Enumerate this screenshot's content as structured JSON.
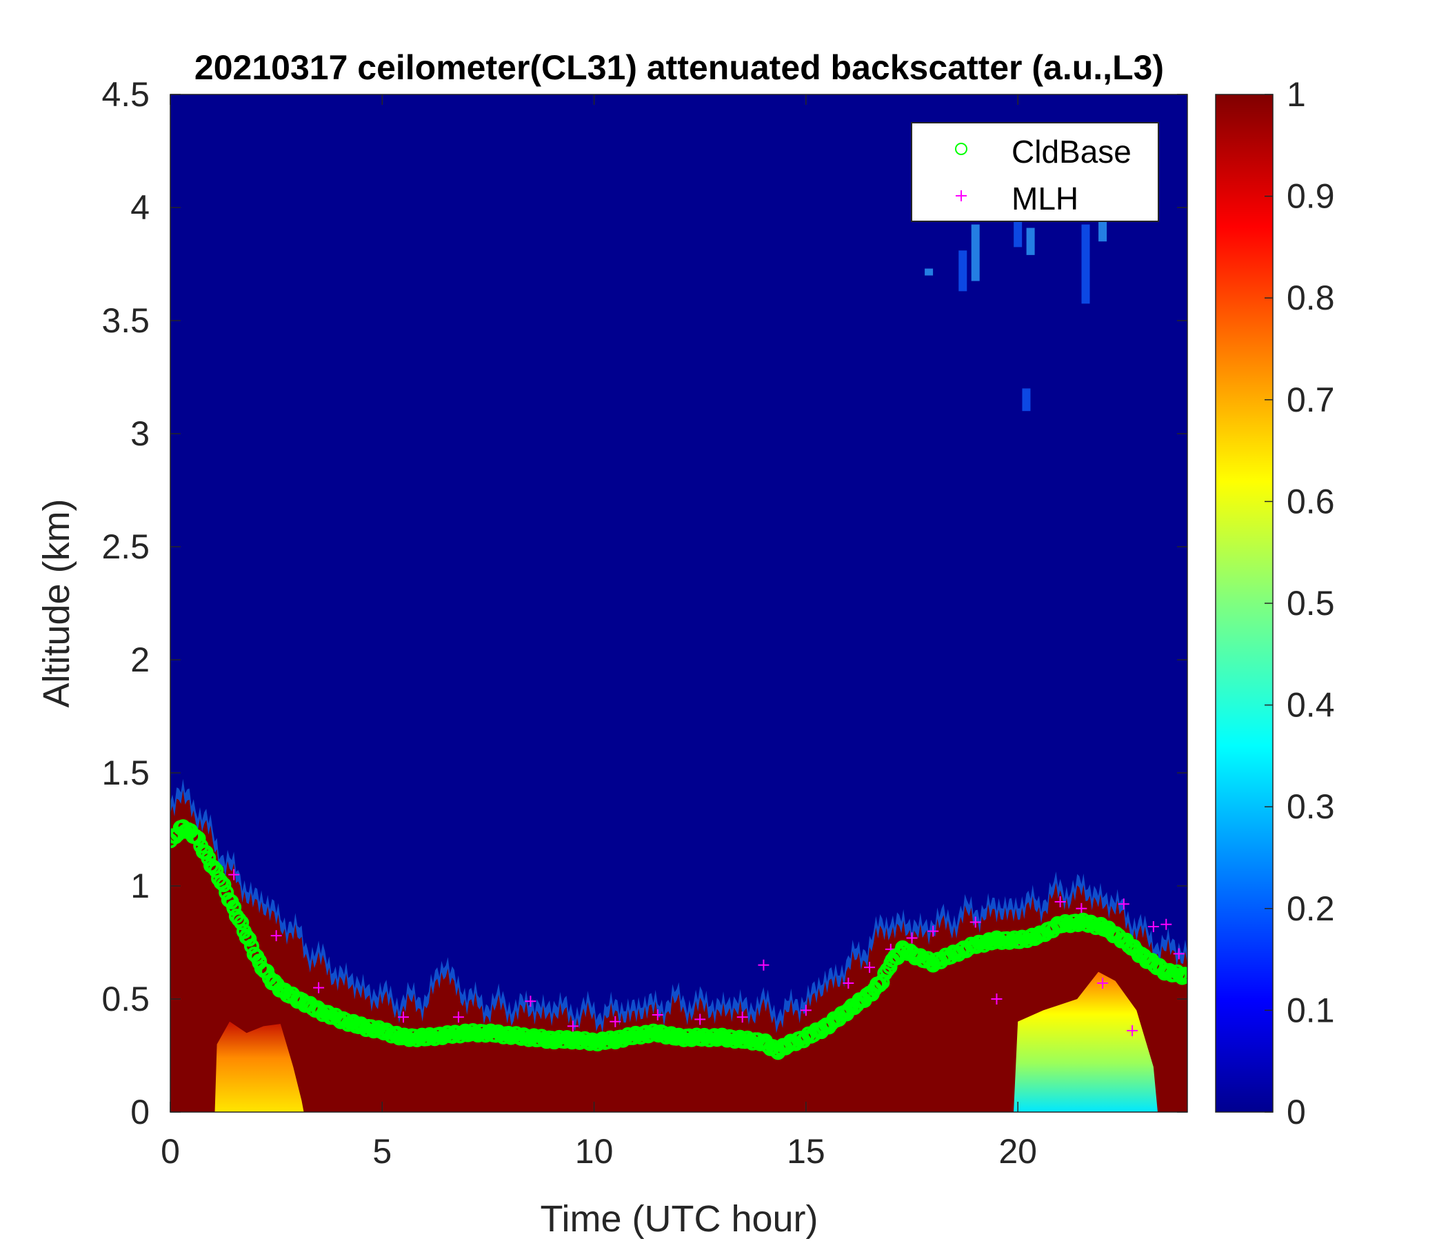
{
  "chart_data": {
    "type": "heatmap",
    "title": "20210317 ceilometer(CL31) attenuated backscatter (a.u.,L3)",
    "xlabel": "Time (UTC hour)",
    "ylabel": "Altitude (km)",
    "xlim": [
      0,
      24
    ],
    "ylim": [
      0,
      4.5
    ],
    "xticks": [
      "0",
      "5",
      "10",
      "15",
      "20"
    ],
    "xtick_values": [
      0,
      5,
      10,
      15,
      20
    ],
    "yticks": [
      "0",
      "0.5",
      "1",
      "1.5",
      "2",
      "2.5",
      "3",
      "3.5",
      "4",
      "4.5"
    ],
    "ytick_values": [
      0,
      0.5,
      1,
      1.5,
      2,
      2.5,
      3,
      3.5,
      4,
      4.5
    ],
    "colorbar": {
      "range": [
        0,
        1
      ],
      "colormap": "jet",
      "ticks": [
        "0",
        "0.1",
        "0.2",
        "0.3",
        "0.4",
        "0.5",
        "0.6",
        "0.7",
        "0.8",
        "0.9",
        "1"
      ],
      "tick_values": [
        0,
        0.1,
        0.2,
        0.3,
        0.4,
        0.5,
        0.6,
        0.7,
        0.8,
        0.9,
        1
      ]
    },
    "background_color": "#00008f",
    "saturated_color": "#800000",
    "grid": false,
    "legend": {
      "placement": "top-right",
      "entries": [
        {
          "label": "CldBase",
          "marker": "circle",
          "color": "#00ff00"
        },
        {
          "label": "MLH",
          "marker": "plus",
          "color": "#ff00ff"
        }
      ]
    },
    "aerosol_layer_top_km": {
      "x": [
        0,
        0.2,
        0.5,
        0.8,
        1.2,
        1.6,
        2.0,
        2.5,
        3.0,
        3.5,
        4.0,
        4.5,
        5.0,
        5.5,
        6.0,
        6.5,
        7.0,
        7.5,
        8.0,
        9.0,
        10.0,
        11.0,
        12.0,
        13.0,
        14.0,
        14.5,
        15.0,
        15.5,
        16.0,
        16.5,
        17.0,
        17.5,
        18.0,
        18.5,
        19.0,
        19.5,
        20.0,
        20.5,
        21.0,
        21.5,
        22.0,
        22.5,
        23.0,
        23.5,
        24.0
      ],
      "y": [
        1.32,
        1.38,
        1.35,
        1.25,
        1.12,
        1.0,
        0.92,
        0.85,
        0.75,
        0.65,
        0.58,
        0.52,
        0.48,
        0.46,
        0.47,
        0.62,
        0.47,
        0.45,
        0.44,
        0.43,
        0.41,
        0.43,
        0.46,
        0.44,
        0.44,
        0.41,
        0.47,
        0.55,
        0.62,
        0.72,
        0.82,
        0.78,
        0.8,
        0.83,
        0.86,
        0.87,
        0.88,
        0.9,
        0.95,
        0.96,
        0.92,
        0.86,
        0.75,
        0.7,
        0.68
      ]
    },
    "cldbase_km": {
      "x": [
        0,
        0.3,
        0.6,
        0.9,
        1.2,
        1.5,
        1.8,
        2.1,
        2.4,
        2.7,
        3.0,
        3.5,
        4.0,
        4.5,
        5.0,
        5.5,
        6.0,
        6.5,
        7.0,
        7.5,
        8.0,
        8.5,
        9.0,
        9.5,
        10.0,
        10.5,
        11.0,
        11.5,
        12.0,
        12.5,
        13.0,
        13.5,
        14.0,
        14.3,
        14.6,
        15.0,
        15.5,
        16.0,
        16.5,
        16.8,
        17.0,
        17.3,
        17.6,
        18.0,
        18.5,
        19.0,
        19.5,
        20.0,
        20.5,
        21.0,
        21.5,
        22.0,
        22.5,
        23.0,
        23.5,
        24.0
      ],
      "y": [
        1.2,
        1.26,
        1.22,
        1.12,
        1.02,
        0.9,
        0.78,
        0.66,
        0.58,
        0.53,
        0.5,
        0.45,
        0.41,
        0.38,
        0.36,
        0.33,
        0.33,
        0.34,
        0.35,
        0.35,
        0.34,
        0.33,
        0.32,
        0.32,
        0.31,
        0.32,
        0.34,
        0.35,
        0.33,
        0.33,
        0.33,
        0.32,
        0.31,
        0.27,
        0.3,
        0.33,
        0.38,
        0.45,
        0.52,
        0.58,
        0.66,
        0.72,
        0.69,
        0.66,
        0.7,
        0.74,
        0.76,
        0.76,
        0.78,
        0.83,
        0.84,
        0.82,
        0.76,
        0.68,
        0.62,
        0.6
      ]
    },
    "mlh_km": {
      "x": [
        1.5,
        2.5,
        3.5,
        5.5,
        6.8,
        8.5,
        9.5,
        10.5,
        11.5,
        12.5,
        13.5,
        14.0,
        15.0,
        16.0,
        16.5,
        17.0,
        17.5,
        18.0,
        19.0,
        19.5,
        20.0,
        21.0,
        21.5,
        22.0,
        22.5,
        22.7,
        23.2,
        23.5,
        23.8
      ],
      "y": [
        1.05,
        0.78,
        0.55,
        0.42,
        0.42,
        0.49,
        0.38,
        0.4,
        0.43,
        0.41,
        0.42,
        0.65,
        0.45,
        0.57,
        0.64,
        0.72,
        0.77,
        0.8,
        0.84,
        0.5,
        0.75,
        0.93,
        0.9,
        0.57,
        0.92,
        0.36,
        0.82,
        0.83,
        0.7
      ]
    }
  }
}
